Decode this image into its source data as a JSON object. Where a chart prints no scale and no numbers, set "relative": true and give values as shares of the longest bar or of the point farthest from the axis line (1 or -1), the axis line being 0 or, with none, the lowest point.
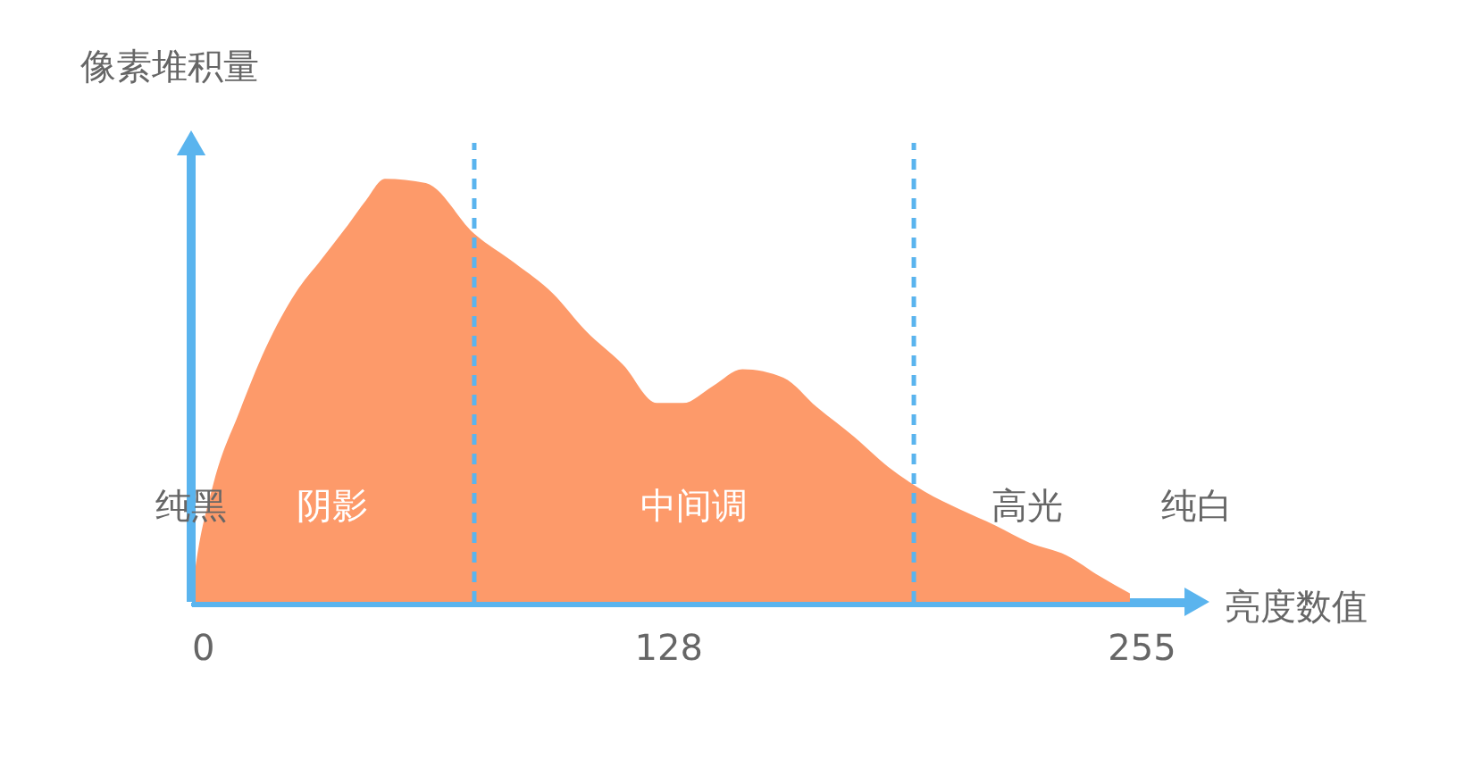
{
  "chart_data": {
    "type": "area",
    "relative": true,
    "xlabel": "亮度数值",
    "ylabel": "像素堆积量",
    "x": [
      0,
      1,
      6,
      13,
      20,
      28,
      35,
      42,
      47,
      52,
      63,
      76,
      87,
      97,
      106,
      116,
      125,
      132,
      140,
      148,
      159,
      168,
      178,
      187,
      197,
      206,
      216,
      225,
      235,
      244,
      252
    ],
    "series": [
      {
        "color": "#fd9a6a",
        "values": [
          0,
          0.07,
          0.28,
          0.45,
          0.6,
          0.73,
          0.81,
          0.89,
          0.95,
          1.0,
          0.99,
          0.87,
          0.8,
          0.73,
          0.64,
          0.56,
          0.47,
          0.47,
          0.51,
          0.55,
          0.53,
          0.46,
          0.39,
          0.32,
          0.26,
          0.22,
          0.18,
          0.14,
          0.11,
          0.06,
          0.02
        ]
      }
    ],
    "xlim": [
      0,
      270
    ],
    "xticks": [
      0,
      128,
      255
    ],
    "ref_lines": [
      {
        "axis": "x",
        "value": 76,
        "color": "#5ab4ee",
        "line_style": "dashed"
      },
      {
        "axis": "x",
        "value": 194,
        "color": "#5ab4ee",
        "line_style": "dashed"
      }
    ],
    "annotations": [
      "纯黑",
      "阴影",
      "中间调",
      "高光",
      "纯白"
    ],
    "grid": false,
    "tick_labels": "x"
  }
}
